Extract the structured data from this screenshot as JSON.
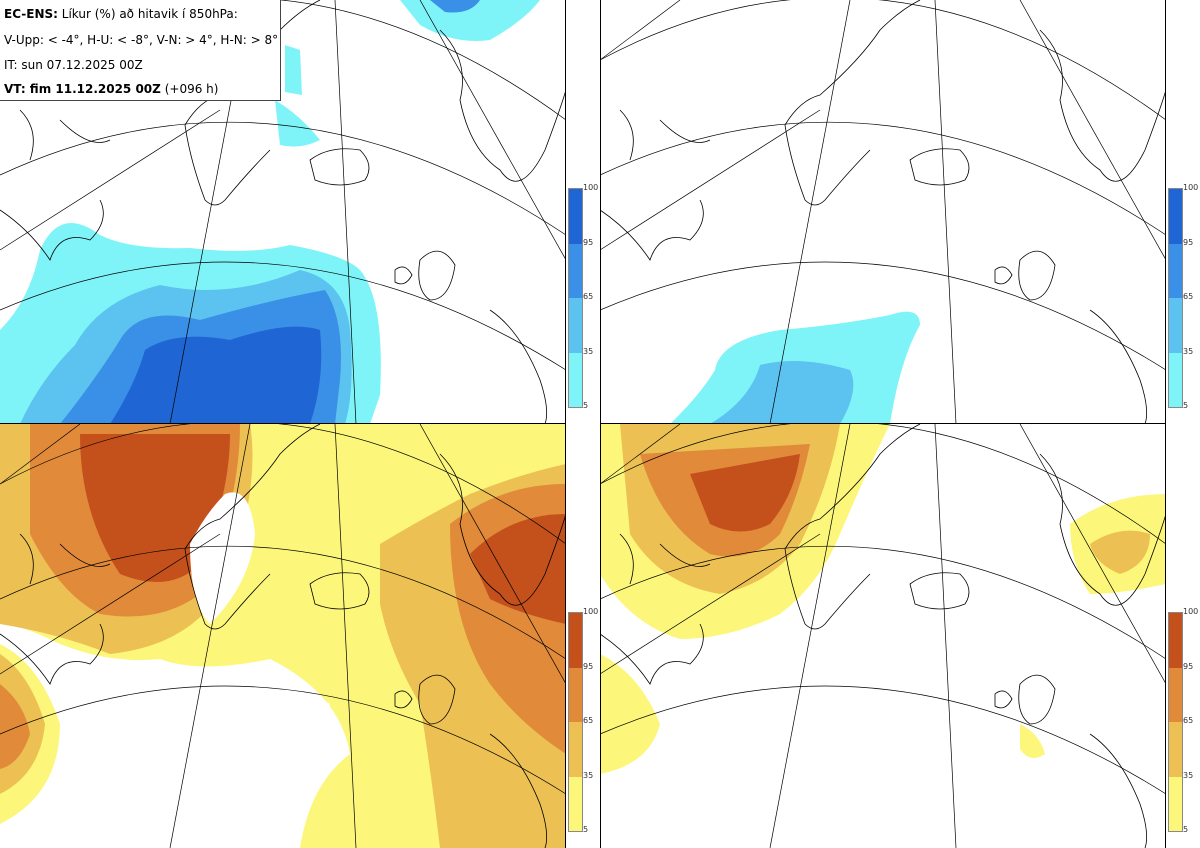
{
  "info": {
    "model": "EC-ENS:",
    "title": "Líkur (%) að hitavik í 850hPa:",
    "legend_def": "V-Upp: < -4°, H-U: < -8°, V-N: > 4°, H-N: > 8°",
    "initial_time": "IT: sun 07.12.2025 00Z",
    "valid_label": "VT: fim 11.12.2025 00Z",
    "lead": "(+096 h)"
  },
  "panels": [
    {
      "id": "V-Upp",
      "description_threshold": "< -4°",
      "palette": "cold"
    },
    {
      "id": "H-U",
      "description_threshold": "< -8°",
      "palette": "cold"
    },
    {
      "id": "V-N",
      "description_threshold": "> 4°",
      "palette": "warm"
    },
    {
      "id": "H-N",
      "description_threshold": "> 8°",
      "palette": "warm"
    }
  ],
  "colorbar": {
    "ticks": [
      "100",
      "95",
      "65",
      "35",
      "5"
    ],
    "cold_colors": [
      "#1f66d4",
      "#3a8fe6",
      "#5cc2f0",
      "#7ff4f8"
    ],
    "warm_colors": [
      "#c4501c",
      "#e08a3a",
      "#ecc052",
      "#fcf77a"
    ]
  }
}
